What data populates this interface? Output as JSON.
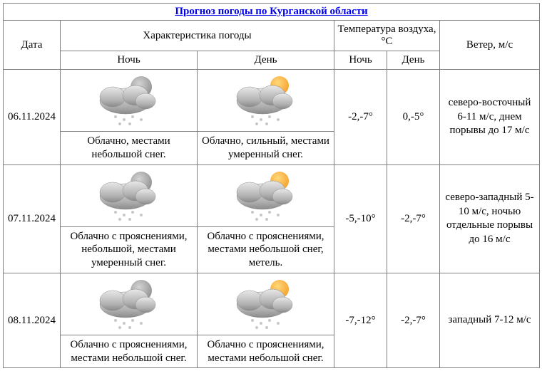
{
  "title": "Прогноз погоды по Курганской области",
  "headers": {
    "date": "Дата",
    "characteristic": "Характеристика погоды",
    "temperature": "Температура воздуха, °С",
    "wind": "Ветер, м/с",
    "night": "Ночь",
    "day": "День"
  },
  "colors": {
    "border": "#808080",
    "link": "#0000ee",
    "cloud_light": "#e8e8e8",
    "cloud_dark": "#b0b0b0",
    "cloud_shadow": "#8a8a8a",
    "moon": "#d4d4d4",
    "moon_dark": "#9a9a9a",
    "sun": "#f7a838",
    "sun_light": "#ffd97a",
    "snow": "#c8c8c8"
  },
  "rows": [
    {
      "date": "06.11.2024",
      "night_desc": "Облачно, местами небольшой снег.",
      "day_desc": "Облачно, сильный, местами умеренный снег.",
      "night_temp": "-2,-7°",
      "day_temp": "0,-5°",
      "wind": "северо-восточный 6-11 м/с, днем порывы до 17 м/с"
    },
    {
      "date": "07.11.2024",
      "night_desc": "Облачно с прояснениями, небольшой, местами умеренный снег.",
      "day_desc": "Облачно с прояснениями, местами небольшой снег, метель.",
      "night_temp": "-5,-10°",
      "day_temp": "-2,-7°",
      "wind": "северо-западный 5-10 м/с, ночью отдельные порывы до 16 м/с"
    },
    {
      "date": "08.11.2024",
      "night_desc": "Облачно с прояснениями, местами небольшой снег.",
      "day_desc": "Облачно с прояснениями, местами небольшой снег.",
      "night_temp": "-7,-12°",
      "day_temp": "-2,-7°",
      "wind": "западный 7-12 м/с"
    }
  ]
}
